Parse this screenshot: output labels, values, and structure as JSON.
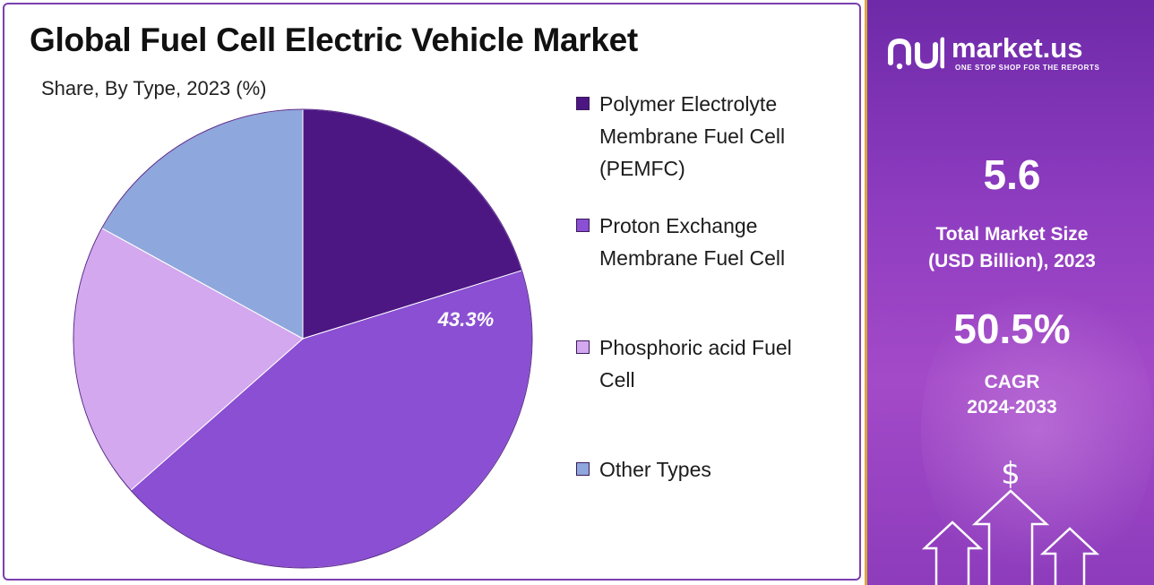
{
  "chart_data": {
    "type": "pie",
    "title": "Global Fuel Cell Electric Vehicle Market",
    "subtitle": "Share, By Type, 2023 (%)",
    "slices": [
      {
        "name": "Polymer Electrolyte Membrane Fuel Cell (PEMFC)",
        "value": 20.2,
        "color": "#4c1783"
      },
      {
        "name": "Proton Exchange Membrane Fuel Cell",
        "value": 43.3,
        "color": "#8a4fd2",
        "label": "43.3%"
      },
      {
        "name": "Phosphoric acid Fuel Cell",
        "value": 19.5,
        "color": "#d3a8ee"
      },
      {
        "name": "Other Types",
        "value": 17.0,
        "color": "#8ea7dd"
      }
    ],
    "legend_position": "right"
  },
  "legend": [
    {
      "label_lines": [
        "Polymer Electrolyte",
        "Membrane Fuel Cell",
        "(PEMFC)"
      ]
    },
    {
      "label_lines": [
        "Proton Exchange",
        "Membrane Fuel Cell"
      ]
    },
    {
      "label_lines": [
        "Phosphoric acid Fuel",
        "Cell"
      ]
    },
    {
      "label_lines": [
        "Other Types"
      ]
    }
  ],
  "sidebar": {
    "brand_name": "market.us",
    "brand_tagline": "ONE STOP SHOP FOR THE REPORTS",
    "market_size_value": "5.6",
    "market_size_label_1": "Total Market Size",
    "market_size_label_2": "(USD Billion), 2023",
    "cagr_value": "50.5%",
    "cagr_label_1": "CAGR",
    "cagr_label_2": "2024-2033",
    "dollar_symbol": "$"
  },
  "colors": {
    "border": "#7a3fb0",
    "sidebar_top": "#6e2aa8",
    "sidebar_bottom": "#8d3cbc",
    "sidebar_edge": "#d9a640"
  }
}
